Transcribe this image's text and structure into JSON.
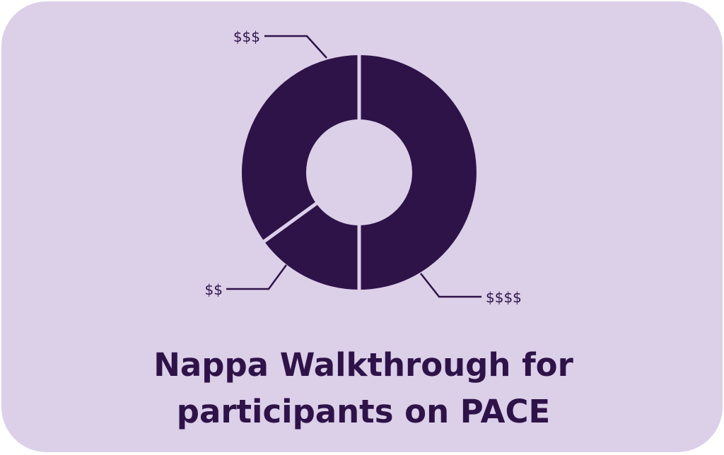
{
  "colors": {
    "background": "#dccfe8",
    "slice": "#2e1349",
    "separator": "#dccfe8"
  },
  "title_lines": [
    "Nappa Walkthrough for",
    "participants on PACE"
  ],
  "chart_data": {
    "type": "pie",
    "variant": "donut",
    "title": "Nappa Walkthrough for participants on PACE",
    "categories": [
      "$$$$",
      "$$",
      "$$$"
    ],
    "values": [
      50,
      15,
      35
    ],
    "start": "top, clockwise",
    "legend": "none (leader-line labels)"
  }
}
